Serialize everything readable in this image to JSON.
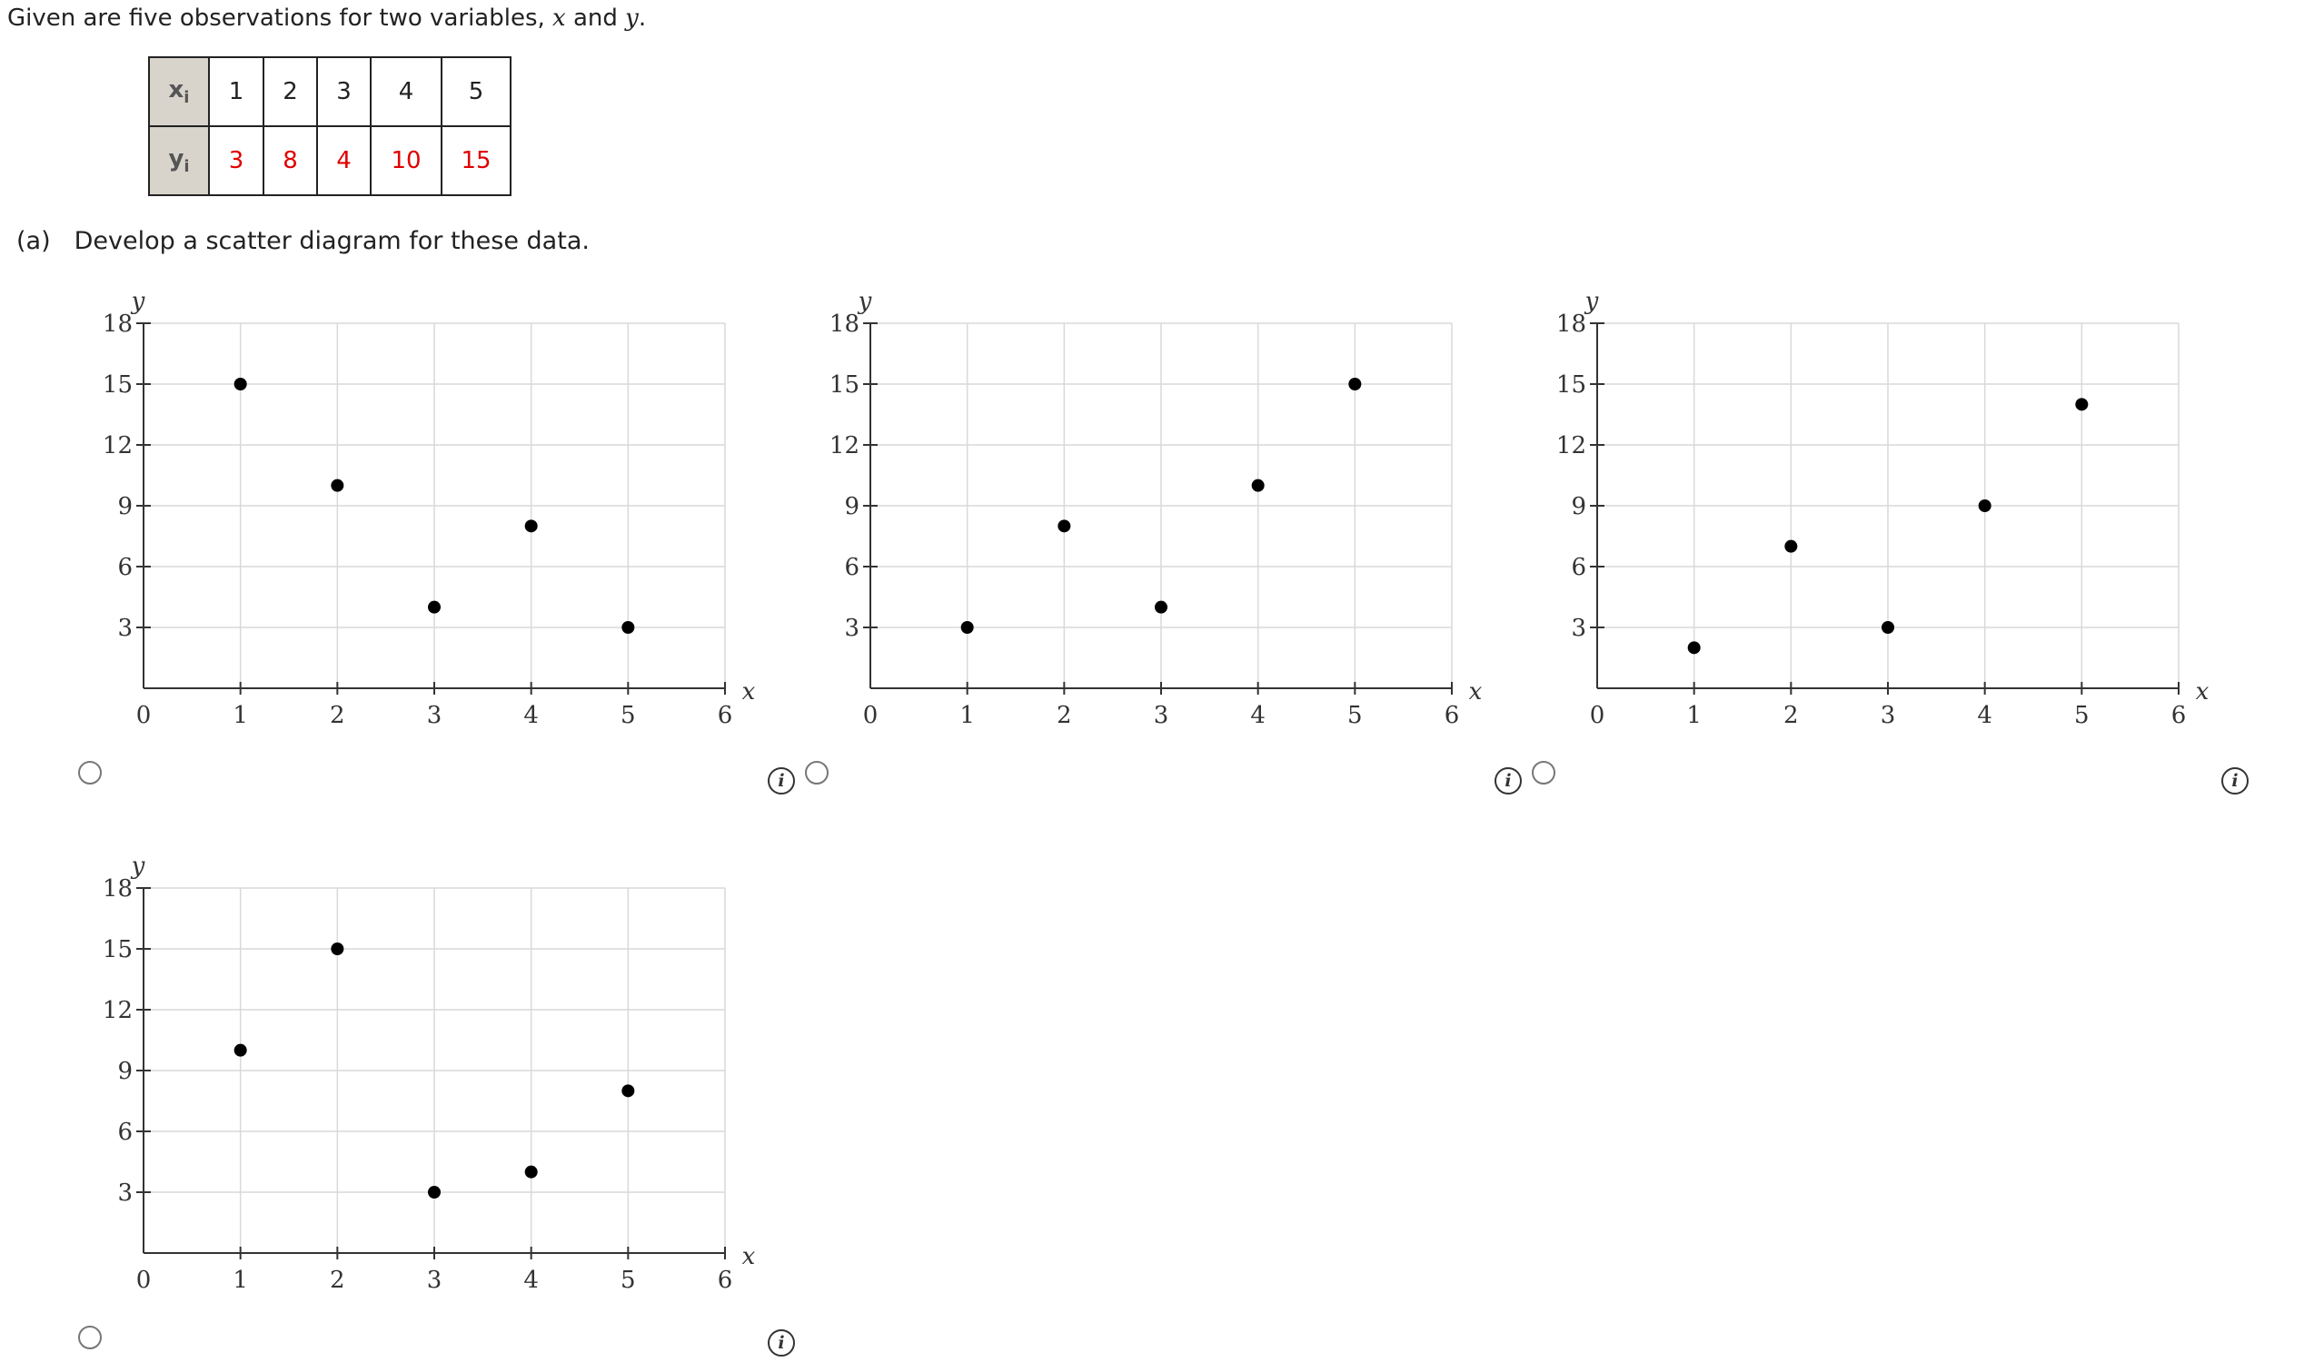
{
  "intro": {
    "text_before": "Given are five observations for two variables, ",
    "var_x": "x",
    "text_mid": " and ",
    "var_y": "y",
    "text_after": "."
  },
  "observations": {
    "x_header": "x",
    "y_header": "y",
    "subscript": "i",
    "x_values": [
      "1",
      "2",
      "3",
      "4",
      "5"
    ],
    "y_values": [
      "3",
      "8",
      "4",
      "10",
      "15"
    ],
    "y_value_color": "#e00000",
    "header_bg": "#d8d3cb"
  },
  "part_a": {
    "label": "(a)",
    "question": "Develop a scatter diagram for these data."
  },
  "chart_data": [
    {
      "type": "scatter",
      "option": 1,
      "xlabel": "x",
      "ylabel": "y",
      "xlim": [
        0,
        6
      ],
      "ylim": [
        0,
        18
      ],
      "xticks": [
        0,
        1,
        2,
        3,
        4,
        5,
        6
      ],
      "yticks": [
        3,
        6,
        9,
        12,
        15,
        18
      ],
      "grid": true,
      "points": [
        [
          1,
          15
        ],
        [
          2,
          10
        ],
        [
          3,
          4
        ],
        [
          4,
          8
        ],
        [
          5,
          3
        ]
      ]
    },
    {
      "type": "scatter",
      "option": 2,
      "xlabel": "x",
      "ylabel": "y",
      "xlim": [
        0,
        6
      ],
      "ylim": [
        0,
        18
      ],
      "xticks": [
        0,
        1,
        2,
        3,
        4,
        5,
        6
      ],
      "yticks": [
        3,
        6,
        9,
        12,
        15,
        18
      ],
      "grid": true,
      "points": [
        [
          1,
          3
        ],
        [
          2,
          8
        ],
        [
          3,
          4
        ],
        [
          4,
          10
        ],
        [
          5,
          15
        ]
      ]
    },
    {
      "type": "scatter",
      "option": 3,
      "xlabel": "x",
      "ylabel": "y",
      "xlim": [
        0,
        6
      ],
      "ylim": [
        0,
        18
      ],
      "xticks": [
        0,
        1,
        2,
        3,
        4,
        5,
        6
      ],
      "yticks": [
        3,
        6,
        9,
        12,
        15,
        18
      ],
      "grid": true,
      "points": [
        [
          1,
          2
        ],
        [
          2,
          7
        ],
        [
          3,
          3
        ],
        [
          4,
          9
        ],
        [
          5,
          14
        ]
      ]
    },
    {
      "type": "scatter",
      "option": 4,
      "xlabel": "x",
      "ylabel": "y",
      "xlim": [
        0,
        6
      ],
      "ylim": [
        0,
        18
      ],
      "xticks": [
        0,
        1,
        2,
        3,
        4,
        5,
        6
      ],
      "yticks": [
        3,
        6,
        9,
        12,
        15,
        18
      ],
      "grid": true,
      "points": [
        [
          1,
          10
        ],
        [
          2,
          15
        ],
        [
          3,
          3
        ],
        [
          4,
          4
        ],
        [
          5,
          8
        ]
      ]
    }
  ],
  "info_icon": {
    "glyph": "i"
  },
  "colors": {
    "grid": "#d9d9d9",
    "axis": "#333333",
    "point": "#000000"
  }
}
